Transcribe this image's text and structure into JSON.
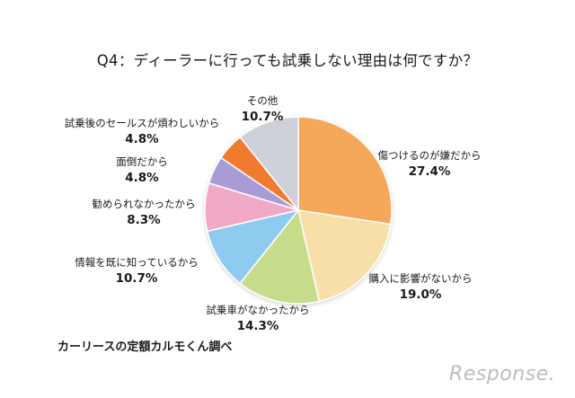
{
  "chart_data": {
    "type": "pie",
    "title": "Q4：ディーラーに行っても試乗しない理由は何ですか？",
    "slices": [
      {
        "label": "傷つけるのが嫌だから",
        "value_label": "27.4%",
        "value": 27.4,
        "color": "#f6a85a"
      },
      {
        "label": "購入に影響がないから",
        "value_label": "19.0%",
        "value": 19.0,
        "color": "#f7dfa8"
      },
      {
        "label": "試乗車がなかったから",
        "value_label": "14.3%",
        "value": 14.3,
        "color": "#c5dd8a"
      },
      {
        "label": "情報を既に知っているから",
        "value_label": "10.7%",
        "value": 10.7,
        "color": "#8ecbef"
      },
      {
        "label": "勧められなかったから",
        "value_label": "8.3%",
        "value": 8.3,
        "color": "#f0a9c7"
      },
      {
        "label": "面倒だから",
        "value_label": "4.8%",
        "value": 4.8,
        "color": "#a99bd6"
      },
      {
        "label": "試乗後のセールスが煩わしいから",
        "value_label": "4.8%",
        "value": 4.8,
        "color": "#f07a2e"
      },
      {
        "label": "その他",
        "value_label": "10.7%",
        "value": 10.7,
        "color": "#cfd1da"
      }
    ],
    "start_angle_deg": 0,
    "direction": "clockwise"
  },
  "footer": {
    "source": "カーリースの定額カルモくん調べ",
    "watermark": "Response."
  }
}
